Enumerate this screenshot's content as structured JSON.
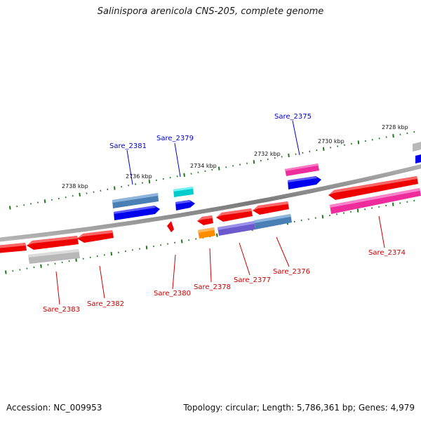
{
  "title": "Salinispora arenicola CNS-205, complete genome",
  "footer": {
    "accession": "Accession: NC_009953",
    "summary": "Topology: circular; Length: 5,786,361 bp; Genes: 4,979"
  },
  "ruler": {
    "labels": [
      {
        "text": "2728 kbp",
        "kbp": 2728
      },
      {
        "text": "2730 kbp",
        "kbp": 2730
      },
      {
        "text": "2732 kbp",
        "kbp": 2732
      },
      {
        "text": "2734 kbp",
        "kbp": 2734
      },
      {
        "text": "2736 kbp",
        "kbp": 2736
      },
      {
        "text": "2738 kbp",
        "kbp": 2738
      }
    ]
  },
  "gene_labels": {
    "top": [
      {
        "text": "Sare_2375",
        "color": "#0000cc"
      },
      {
        "text": "Sare_2379",
        "color": "#0000cc"
      },
      {
        "text": "Sare_2381",
        "color": "#0000cc"
      }
    ],
    "bottom": [
      {
        "text": "Sare_2374",
        "color": "#cc0000"
      },
      {
        "text": "Sare_2376",
        "color": "#cc0000"
      },
      {
        "text": "Sare_2377",
        "color": "#cc0000"
      },
      {
        "text": "Sare_2378",
        "color": "#cc0000"
      },
      {
        "text": "Sare_2380",
        "color": "#cc0000"
      },
      {
        "text": "Sare_2382",
        "color": "#cc0000"
      },
      {
        "text": "Sare_2383",
        "color": "#cc0000"
      }
    ]
  },
  "colors": {
    "backbone": "#8a8a8a",
    "tick": "#1f7a1f",
    "forward": "#0000ee",
    "reverse": "#ee0000",
    "steelblue": "#4a7fb5",
    "magenta": "#ee2c9c",
    "cyan": "#00cccc",
    "gray": "#b8b8b8",
    "orange": "#ff8c00",
    "slateblue": "#6a5acd"
  }
}
